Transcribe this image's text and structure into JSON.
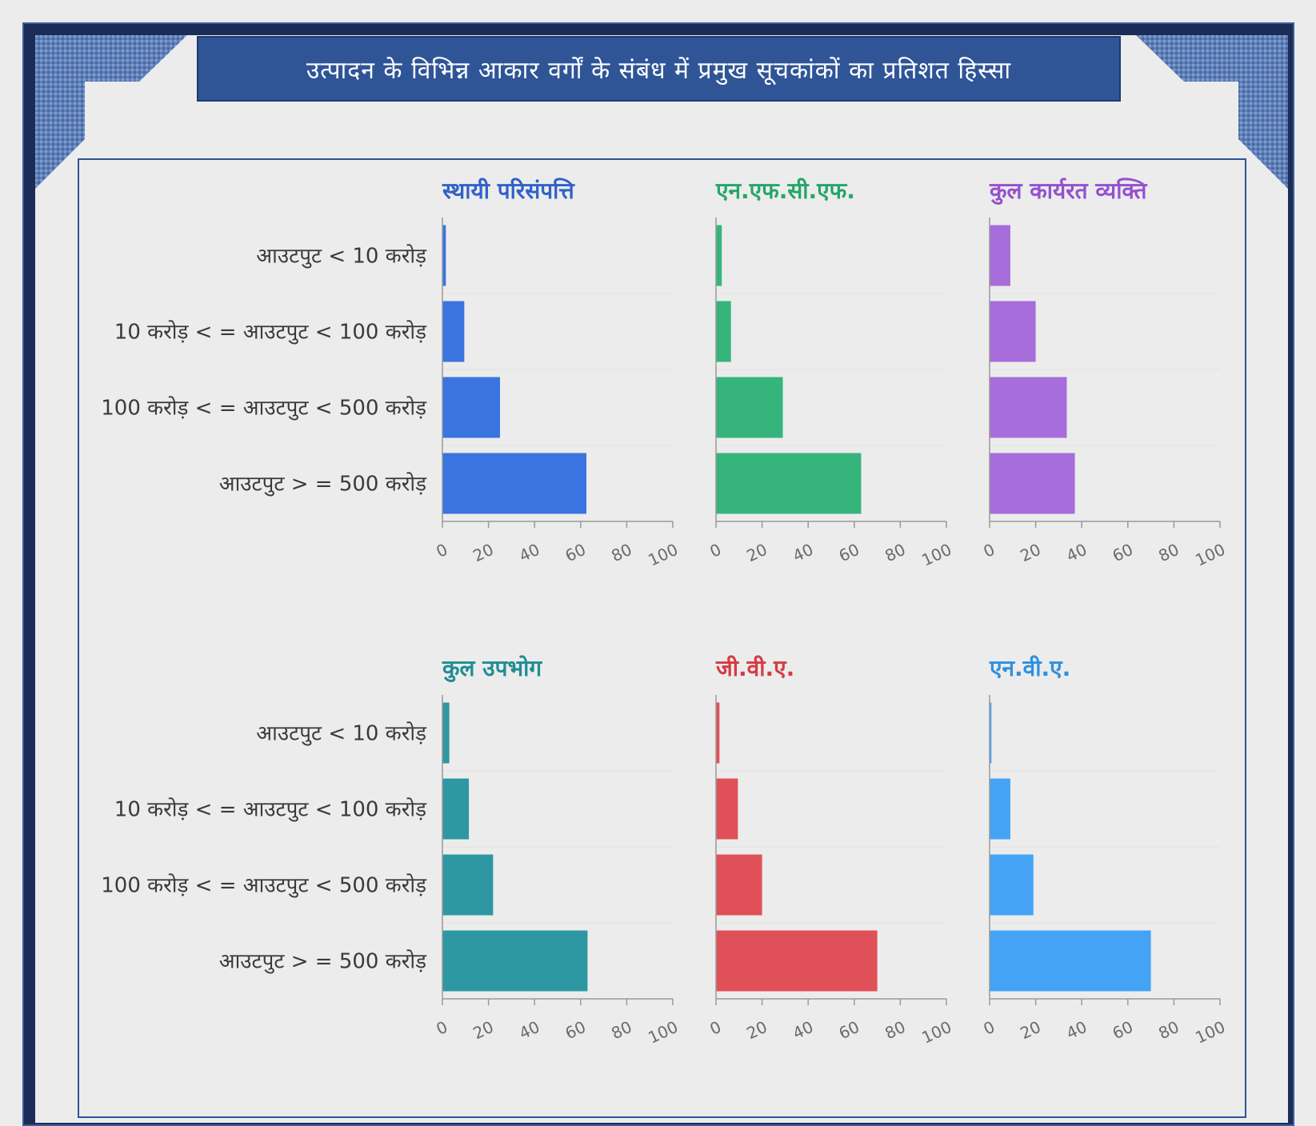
{
  "page": {
    "title": "उत्पादन  के विभिन्न आकार वर्गों के संबंध में प्रमुख सूचकांकों का प्रतिशत  हिस्सा"
  },
  "colors": {
    "frame": "#1b2d56",
    "banner": "#2f5597",
    "axis": "#9a9a9a"
  },
  "chart_data": [
    {
      "type": "bar",
      "orientation": "horizontal",
      "title": "स्थायी परिसंपत्ति",
      "title_color": "#2f62c9",
      "color": "#3a74e0",
      "categories": [
        "आउटपुट < 10 करोड़",
        "10 करोड़ < = आउटपुट < 100 करोड़",
        "100 करोड़ < = आउटपुट < 500 करोड़",
        "आउटपुट > = 500 करोड़"
      ],
      "values": [
        1.5,
        9.5,
        25,
        62.5
      ],
      "xlim": [
        0,
        100
      ],
      "xticks": [
        "0",
        "20",
        "40",
        "60",
        "80",
        "100"
      ]
    },
    {
      "type": "bar",
      "orientation": "horizontal",
      "title": "एन.एफ.सी.एफ.",
      "title_color": "#25a56a",
      "color": "#35b57c",
      "categories": [
        "आउटपुट < 10 करोड़",
        "10 करोड़ < = आउटपुट < 100 करोड़",
        "100 करोड़ < = आउटपुट < 500 करोड़",
        "आउटपुट > = 500 करोड़"
      ],
      "values": [
        2.5,
        6.5,
        29,
        63
      ],
      "xlim": [
        0,
        100
      ],
      "xticks": [
        "0",
        "20",
        "40",
        "60",
        "80",
        "100"
      ]
    },
    {
      "type": "bar",
      "orientation": "horizontal",
      "title": "कुल कार्यरत व्यक्ति",
      "title_color": "#9550cf",
      "color": "#a66ddb",
      "categories": [
        "आउटपुट < 10 करोड़",
        "10 करोड़ < = आउटपुट < 100 करोड़",
        "100 करोड़ < = आउटपुट < 500 करोड़",
        "आउटपुट > = 500 करोड़"
      ],
      "values": [
        9,
        20,
        33.5,
        37
      ],
      "xlim": [
        0,
        100
      ],
      "xticks": [
        "0",
        "20",
        "40",
        "60",
        "80",
        "100"
      ]
    },
    {
      "type": "bar",
      "orientation": "horizontal",
      "title": "कुल उपभोग",
      "title_color": "#1f8d93",
      "color": "#2e98a2",
      "categories": [
        "आउटपुट < 10 करोड़",
        "10 करोड़ < = आउटपुट < 100 करोड़",
        "100 करोड़ < = आउटपुट < 500 करोड़",
        "आउटपुट > = 500 करोड़"
      ],
      "values": [
        3,
        11.5,
        22,
        63
      ],
      "xlim": [
        0,
        100
      ],
      "xticks": [
        "0",
        "20",
        "40",
        "60",
        "80",
        "100"
      ]
    },
    {
      "type": "bar",
      "orientation": "horizontal",
      "title": "जी.वी.ए.",
      "title_color": "#d63b43",
      "color": "#e05058",
      "categories": [
        "आउटपुट < 10 करोड़",
        "10 करोड़ < = आउटपुट < 100 करोड़",
        "100 करोड़ < = आउटपुट < 500 करोड़",
        "आउटपुट > = 500 करोड़"
      ],
      "values": [
        1.5,
        9.5,
        20,
        70
      ],
      "xlim": [
        0,
        100
      ],
      "xticks": [
        "0",
        "20",
        "40",
        "60",
        "80",
        "100"
      ]
    },
    {
      "type": "bar",
      "orientation": "horizontal",
      "title": "एन.वी.ए.",
      "title_color": "#2f8fe0",
      "color": "#45a3f5",
      "categories": [
        "आउटपुट < 10 करोड़",
        "10 करोड़ < = आउटपुट < 100 करोड़",
        "100 करोड़ < = आउटपुट < 500 करोड़",
        "आउटपुट > = 500 करोड़"
      ],
      "values": [
        0.8,
        9,
        19,
        70
      ],
      "xlim": [
        0,
        100
      ],
      "xticks": [
        "0",
        "20",
        "40",
        "60",
        "80",
        "100"
      ]
    }
  ]
}
